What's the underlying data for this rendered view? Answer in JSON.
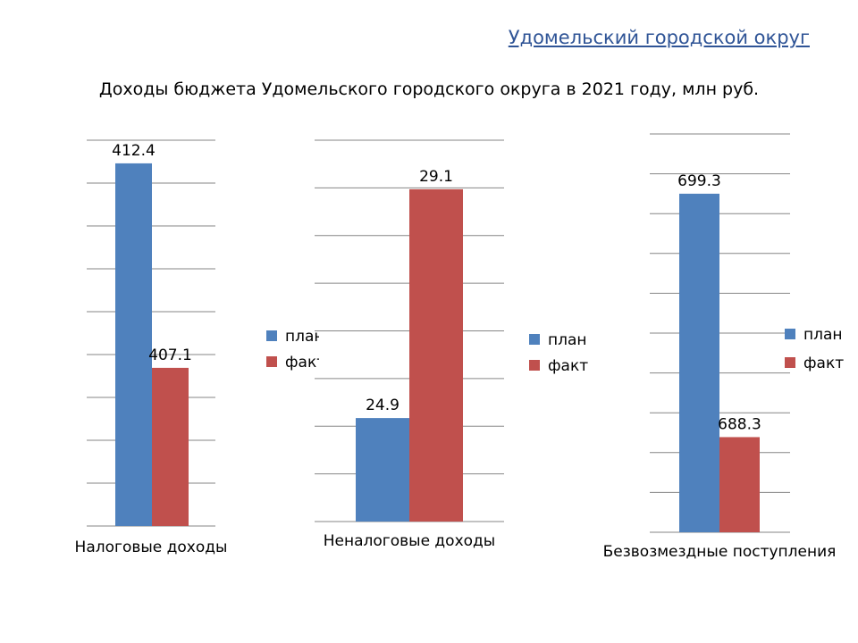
{
  "header": {
    "link_text": "Удомельский городской округ"
  },
  "title": "Доходы бюджета Удомельского городского округа в 2021 году, млн руб.",
  "colors": {
    "plan": "#4f81bd",
    "fact": "#c0504d",
    "grid": "#868686"
  },
  "chart_data": [
    {
      "type": "bar",
      "categories": [
        "Налоговые доходы"
      ],
      "series": [
        {
          "name": "план",
          "values": [
            412.4
          ]
        },
        {
          "name": "факт",
          "values": [
            407.1
          ]
        }
      ],
      "data_labels": [
        "412.4",
        "407.1"
      ],
      "legend": [
        "план",
        "факт"
      ],
      "legend_position": "right",
      "ylim": [
        403,
        413
      ],
      "grid": true
    },
    {
      "type": "bar",
      "categories": [
        "Неналоговые доходы"
      ],
      "series": [
        {
          "name": "план",
          "values": [
            24.9
          ]
        },
        {
          "name": "факт",
          "values": [
            29.1
          ]
        }
      ],
      "data_labels": [
        "24.9",
        "29.1"
      ],
      "legend": [
        "план",
        "факт"
      ],
      "legend_position": "right",
      "ylim": [
        23,
        30
      ],
      "grid": true
    },
    {
      "type": "bar",
      "categories": [
        "Безвозмездные поступления"
      ],
      "series": [
        {
          "name": "план",
          "values": [
            699.3
          ]
        },
        {
          "name": "факт",
          "values": [
            688.3
          ]
        }
      ],
      "data_labels": [
        "699.3",
        "688.3"
      ],
      "legend": [
        "план",
        "факт"
      ],
      "legend_position": "right",
      "ylim": [
        684,
        702
      ],
      "grid": true
    }
  ]
}
